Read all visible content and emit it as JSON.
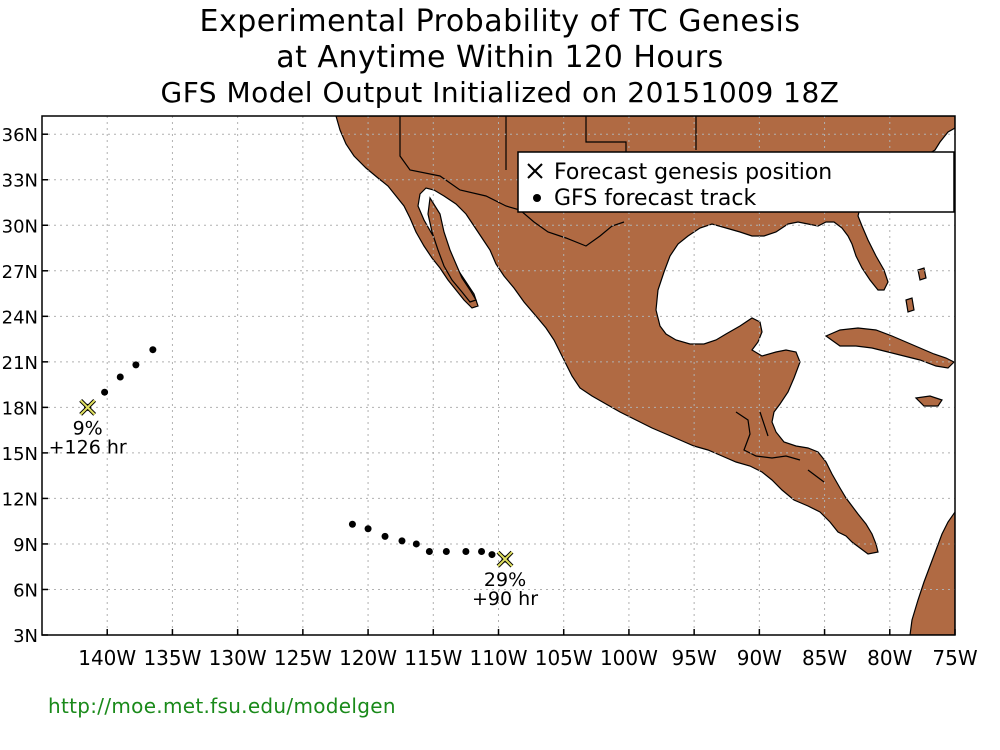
{
  "title": {
    "line1": "Experimental Probability of TC Genesis",
    "line2": "at Anytime Within 120 Hours",
    "line3": "GFS Model Output Initialized on 20151009 18Z"
  },
  "legend": {
    "genesis_label": "Forecast genesis position",
    "track_label": "GFS forecast track"
  },
  "axes": {
    "lon_ticks": [
      "140W",
      "135W",
      "130W",
      "125W",
      "120W",
      "115W",
      "110W",
      "105W",
      "100W",
      "95W",
      "90W",
      "85W",
      "80W",
      "75W"
    ],
    "lat_ticks": [
      "36N",
      "33N",
      "30N",
      "27N",
      "24N",
      "21N",
      "18N",
      "15N",
      "12N",
      "9N",
      "6N",
      "3N"
    ]
  },
  "systems": [
    {
      "id": "west",
      "genesis": {
        "lon": -141.5,
        "lat": 18.0
      },
      "probability": "9%",
      "lead_time": "+126 hr",
      "track": [
        [
          -136.5,
          21.8
        ],
        [
          -137.8,
          20.8
        ],
        [
          -139.0,
          20.0
        ],
        [
          -140.2,
          19.0
        ],
        [
          -141.5,
          18.0
        ]
      ]
    },
    {
      "id": "east",
      "genesis": {
        "lon": -109.5,
        "lat": 8.0
      },
      "probability": "29%",
      "lead_time": "+90 hr",
      "track": [
        [
          -121.2,
          10.3
        ],
        [
          -120.0,
          10.0
        ],
        [
          -118.7,
          9.5
        ],
        [
          -117.4,
          9.2
        ],
        [
          -116.3,
          9.0
        ],
        [
          -115.3,
          8.5
        ],
        [
          -114.0,
          8.5
        ],
        [
          -112.5,
          8.5
        ],
        [
          -111.3,
          8.5
        ],
        [
          -110.5,
          8.3
        ],
        [
          -109.5,
          8.0
        ]
      ]
    }
  ],
  "colors": {
    "land": "#b06a43",
    "ocean": "#ffffff",
    "grid": "#b0b0b0",
    "marker": "#e0e060",
    "url": "#1a8a1a"
  },
  "url": "http://moe.met.fsu.edu/modelgen"
}
